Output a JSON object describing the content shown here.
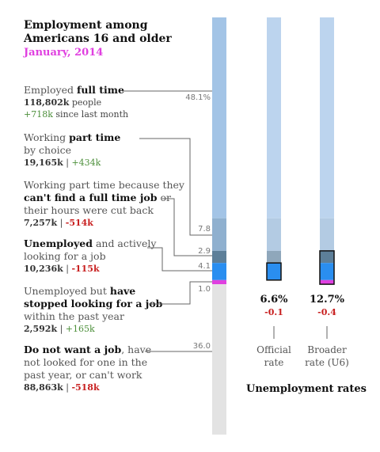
{
  "header": {
    "title": "Employment among Americans 16 and older",
    "subtitle": "January, 2014"
  },
  "categories": [
    {
      "pre": "Employed",
      "bold": "full time",
      "post": "",
      "people": "118,802k",
      "people_suffix": "people",
      "change": "+718k",
      "change_suffix": "since last month",
      "pct": "48.1%"
    },
    {
      "pre": "Working",
      "bold": "part time",
      "post": "by choice",
      "people": "19,165k",
      "change": "+434k",
      "pct": "7.8"
    },
    {
      "pre": "Working part time because they",
      "bold": "can't find a full time job",
      "post": "or their hours were cut back",
      "people": "7,257k",
      "change": "-514k",
      "pct": "2.9"
    },
    {
      "pre": "",
      "bold": "Unemployed",
      "post": "and actively looking for a job",
      "people": "10,236k",
      "change": "-115k",
      "pct": "4.1"
    },
    {
      "pre": "Unemployed but",
      "bold": "have stopped looking for a job",
      "post": "within the past year",
      "people": "2,592k",
      "change": "+165k",
      "pct": "1.0"
    },
    {
      "pre": "",
      "bold": "Do not want a job",
      "post": ", have not looked for one in the past year, or can't work",
      "people": "88,863k",
      "change": "-518k",
      "pct": "36.0"
    }
  ],
  "chart_data": {
    "type": "bar",
    "title": "Employment among Americans 16 and older",
    "subtitle": "January, 2014",
    "segments": [
      "Employed full time",
      "Working part time by choice",
      "Working part time because they can't find a full time job",
      "Unemployed and actively looking for a job",
      "Unemployed but have stopped looking for a job",
      "Do not want a job"
    ],
    "values": [
      48.1,
      7.8,
      2.9,
      4.1,
      1.0,
      36.0
    ],
    "colors": [
      "#a3c4e6",
      "#8fb0cf",
      "#5d7f99",
      "#2a8ef0",
      "#e040e0",
      "#e3e3e3"
    ],
    "rates": [
      {
        "value": "6.6%",
        "change": "-0.1",
        "label_line1": "Official",
        "label_line2": "rate"
      },
      {
        "value": "12.7%",
        "change": "-0.4",
        "label_line1": "Broader",
        "label_line2": "rate (U6)"
      }
    ],
    "rates_title": "Unemployment rates"
  }
}
